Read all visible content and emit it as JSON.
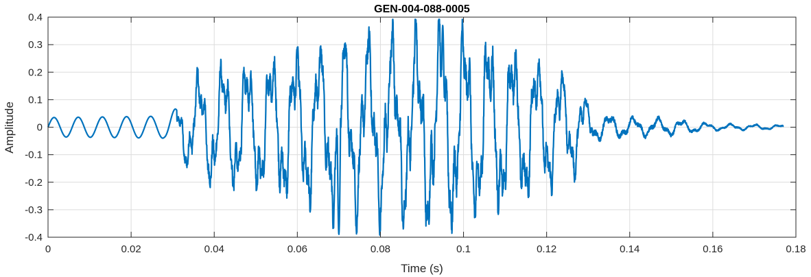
{
  "chart_data": {
    "type": "line",
    "title": "GEN-004-088-0005",
    "xlabel": "Time (s)",
    "ylabel": "Amplitude",
    "xlim": [
      0,
      0.18
    ],
    "ylim": [
      -0.4,
      0.4
    ],
    "xticks": [
      0,
      0.02,
      0.04,
      0.06,
      0.08,
      0.1,
      0.12,
      0.14,
      0.16,
      0.18
    ],
    "xtick_labels": [
      "0",
      "0.02",
      "0.04",
      "0.06",
      "0.08",
      "0.1",
      "0.12",
      "0.14",
      "0.16",
      "0.18"
    ],
    "yticks": [
      -0.4,
      -0.3,
      -0.2,
      -0.1,
      0,
      0.1,
      0.2,
      0.3,
      0.4
    ],
    "ytick_labels": [
      "-0.4",
      "-0.3",
      "-0.2",
      "-0.1",
      "0",
      "0.1",
      "0.2",
      "0.3",
      "0.4"
    ],
    "grid": true,
    "line_color": "#0072BD",
    "x_end": 0.177,
    "envelope": [
      [
        0,
        0.035
      ],
      [
        0.028,
        0.04
      ],
      [
        0.031,
        0.07
      ],
      [
        0.034,
        0.16
      ],
      [
        0.04,
        0.21
      ],
      [
        0.05,
        0.23
      ],
      [
        0.06,
        0.27
      ],
      [
        0.07,
        0.3
      ],
      [
        0.08,
        0.32
      ],
      [
        0.09,
        0.34
      ],
      [
        0.095,
        0.36
      ],
      [
        0.1,
        0.34
      ],
      [
        0.11,
        0.3
      ],
      [
        0.12,
        0.23
      ],
      [
        0.128,
        0.15
      ],
      [
        0.131,
        0.05
      ],
      [
        0.14,
        0.035
      ],
      [
        0.15,
        0.03
      ],
      [
        0.16,
        0.012
      ],
      [
        0.177,
        0.008
      ]
    ],
    "notable_points": {
      "max": {
        "x": 0.095,
        "y": 0.37
      },
      "min": {
        "x": 0.07,
        "y": -0.39
      }
    }
  }
}
